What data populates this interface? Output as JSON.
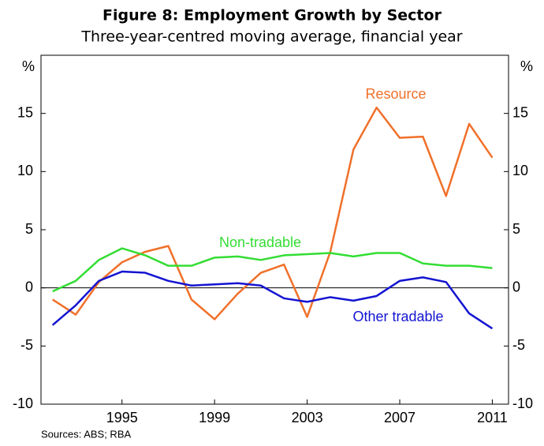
{
  "chart_data": {
    "type": "line",
    "title": "Figure 8: Employment Growth by Sector",
    "subtitle": "Three-year-centred moving average, financial year",
    "y_unit": "%",
    "source": "Sources: ABS; RBA",
    "x": [
      1992,
      1993,
      1994,
      1995,
      1996,
      1997,
      1998,
      1999,
      2000,
      2001,
      2002,
      2003,
      2004,
      2005,
      2006,
      2007,
      2008,
      2009,
      2010,
      2011
    ],
    "xlim": [
      1991.5,
      2011.7
    ],
    "xticks": [
      1995,
      1999,
      2003,
      2007,
      2011
    ],
    "ylim": [
      -10,
      20
    ],
    "yticks": [
      -10,
      -5,
      0,
      5,
      10,
      15
    ],
    "grid": false,
    "series": [
      {
        "name": "Resource",
        "color": "#f0702a",
        "values": [
          -1.0,
          -2.3,
          0.5,
          2.2,
          3.1,
          3.6,
          -1.0,
          -2.7,
          -0.5,
          1.3,
          2.0,
          -2.5,
          3.1,
          11.9,
          15.5,
          12.9,
          13.0,
          7.9,
          14.1,
          11.2
        ]
      },
      {
        "name": "Non-tradable",
        "color": "#33dd33",
        "values": [
          -0.3,
          0.6,
          2.4,
          3.4,
          2.8,
          1.9,
          1.9,
          2.6,
          2.7,
          2.4,
          2.8,
          2.9,
          3.0,
          2.7,
          3.0,
          3.0,
          2.1,
          1.9,
          1.9,
          1.7
        ]
      },
      {
        "name": "Other tradable",
        "color": "#1414d2",
        "values": [
          -3.2,
          -1.5,
          0.6,
          1.4,
          1.3,
          0.6,
          0.2,
          0.3,
          0.4,
          0.2,
          -0.9,
          -1.2,
          -0.8,
          -1.1,
          -0.7,
          0.6,
          0.9,
          0.5,
          -2.2,
          -3.5
        ]
      }
    ]
  }
}
